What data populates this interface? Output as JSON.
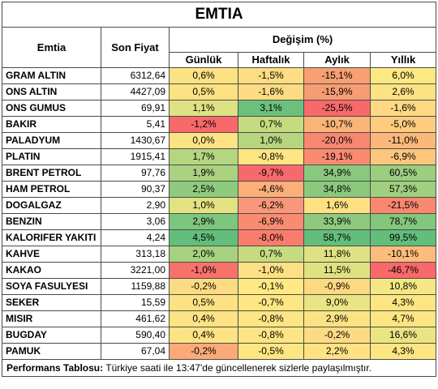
{
  "title": "EMTIA",
  "headers": {
    "emtia": "Emtia",
    "son_fiyat": "Son Fiyat",
    "degisim": "Değişim (%)",
    "gunluk": "Günlük",
    "haftalik": "Haftalık",
    "aylik": "Aylık",
    "yillik": "Yıllık"
  },
  "rows": [
    {
      "name": "GRAM ALTIN",
      "price": "6312,64",
      "vals": [
        {
          "v": "0,6%",
          "c": "#fde283"
        },
        {
          "v": "-1,5%",
          "c": "#fcdd82"
        },
        {
          "v": "-15,1%",
          "c": "#f8a073"
        },
        {
          "v": "6,0%",
          "c": "#fde982"
        }
      ]
    },
    {
      "name": "ONS ALTIN",
      "price": "4427,09",
      "vals": [
        {
          "v": "0,5%",
          "c": "#fde283"
        },
        {
          "v": "-1,6%",
          "c": "#fcdc82"
        },
        {
          "v": "-15,9%",
          "c": "#f89c73"
        },
        {
          "v": "2,6%",
          "c": "#fde283"
        }
      ]
    },
    {
      "name": "ONS GUMUS",
      "price": "69,91",
      "vals": [
        {
          "v": "1,1%",
          "c": "#dfe282"
        },
        {
          "v": "3,1%",
          "c": "#6bc17c"
        },
        {
          "v": "-25,5%",
          "c": "#f8696b"
        },
        {
          "v": "-1,6%",
          "c": "#fed882"
        }
      ]
    },
    {
      "name": "BAKIR",
      "price": "5,41",
      "vals": [
        {
          "v": "-1,2%",
          "c": "#f8696b"
        },
        {
          "v": "0,7%",
          "c": "#c6db80"
        },
        {
          "v": "-10,7%",
          "c": "#f9b578"
        },
        {
          "v": "-5,0%",
          "c": "#fdcc7e"
        }
      ]
    },
    {
      "name": "PALADYUM",
      "price": "1430,67",
      "vals": [
        {
          "v": "0,0%",
          "c": "#fde383"
        },
        {
          "v": "1,0%",
          "c": "#b5d67f"
        },
        {
          "v": "-20,0%",
          "c": "#f8876f"
        },
        {
          "v": "-11,0%",
          "c": "#fcb87a"
        }
      ]
    },
    {
      "name": "PLATIN",
      "price": "1915,41",
      "vals": [
        {
          "v": "1,7%",
          "c": "#b4d67f"
        },
        {
          "v": "-0,8%",
          "c": "#fde583"
        },
        {
          "v": "-19,1%",
          "c": "#f88b70"
        },
        {
          "v": "-6,9%",
          "c": "#fdc67d"
        }
      ]
    },
    {
      "name": "BRENT PETROL",
      "price": "97,76",
      "vals": [
        {
          "v": "1,9%",
          "c": "#abd37f"
        },
        {
          "v": "-9,7%",
          "c": "#f8696b"
        },
        {
          "v": "34,9%",
          "c": "#8ac97d"
        },
        {
          "v": "60,5%",
          "c": "#9bce7f"
        }
      ]
    },
    {
      "name": "HAM PETROL",
      "price": "90,37",
      "vals": [
        {
          "v": "2,5%",
          "c": "#8ecb7e"
        },
        {
          "v": "-4,6%",
          "c": "#fbb07a"
        },
        {
          "v": "34,8%",
          "c": "#8ac97d"
        },
        {
          "v": "57,3%",
          "c": "#a0d07f"
        }
      ]
    },
    {
      "name": "DOGALGAZ",
      "price": "2,90",
      "vals": [
        {
          "v": "1,0%",
          "c": "#e2e282"
        },
        {
          "v": "-6,2%",
          "c": "#f9977a"
        },
        {
          "v": "1,6%",
          "c": "#fee082"
        },
        {
          "v": "-21,5%",
          "c": "#f8886f"
        }
      ]
    },
    {
      "name": "BENZIN",
      "price": "3,06",
      "vals": [
        {
          "v": "2,9%",
          "c": "#7dc67d"
        },
        {
          "v": "-6,9%",
          "c": "#f98c70"
        },
        {
          "v": "33,9%",
          "c": "#8dca7e"
        },
        {
          "v": "78,7%",
          "c": "#83c77d"
        }
      ]
    },
    {
      "name": "KALORIFER YAKITI",
      "price": "4,24",
      "vals": [
        {
          "v": "4,5%",
          "c": "#63be7b"
        },
        {
          "v": "-8,0%",
          "c": "#f97d6e"
        },
        {
          "v": "58,7%",
          "c": "#63be7b"
        },
        {
          "v": "99,5%",
          "c": "#63be7b"
        }
      ]
    },
    {
      "name": "KAHVE",
      "price": "313,18",
      "vals": [
        {
          "v": "2,0%",
          "c": "#a6d27f"
        },
        {
          "v": "0,7%",
          "c": "#c6db80"
        },
        {
          "v": "11,8%",
          "c": "#dfe282"
        },
        {
          "v": "-10,1%",
          "c": "#fcbc7b"
        }
      ]
    },
    {
      "name": "KAKAO",
      "price": "3221,00",
      "vals": [
        {
          "v": "-1,0%",
          "c": "#f8726c"
        },
        {
          "v": "-1,0%",
          "c": "#fde083"
        },
        {
          "v": "11,5%",
          "c": "#e0e282"
        },
        {
          "v": "-46,7%",
          "c": "#f8696b"
        }
      ]
    },
    {
      "name": "SOYA FASULYESI",
      "price": "1159,88",
      "vals": [
        {
          "v": "-0,2%",
          "c": "#fddb83"
        },
        {
          "v": "-0,1%",
          "c": "#fee983"
        },
        {
          "v": "-0,9%",
          "c": "#fed982"
        },
        {
          "v": "10,8%",
          "c": "#f5e884"
        }
      ]
    },
    {
      "name": "SEKER",
      "price": "15,59",
      "vals": [
        {
          "v": "0,5%",
          "c": "#fde283"
        },
        {
          "v": "-0,7%",
          "c": "#fee683"
        },
        {
          "v": "9,0%",
          "c": "#eae583"
        },
        {
          "v": "4,3%",
          "c": "#fde582"
        }
      ]
    },
    {
      "name": "MISIR",
      "price": "461,62",
      "vals": [
        {
          "v": "0,4%",
          "c": "#fde383"
        },
        {
          "v": "-0,8%",
          "c": "#fde583"
        },
        {
          "v": "2,9%",
          "c": "#fbe383"
        },
        {
          "v": "4,7%",
          "c": "#fde682"
        }
      ]
    },
    {
      "name": "BUGDAY",
      "price": "590,40",
      "vals": [
        {
          "v": "0,4%",
          "c": "#fde383"
        },
        {
          "v": "-0,8%",
          "c": "#fde583"
        },
        {
          "v": "-0,2%",
          "c": "#fedb82"
        },
        {
          "v": "16,6%",
          "c": "#eae582"
        }
      ]
    },
    {
      "name": "PAMUK",
      "price": "67,04",
      "vals": [
        {
          "v": "-0,2%",
          "c": "#fba977"
        },
        {
          "v": "-0,5%",
          "c": "#fee783"
        },
        {
          "v": "2,2%",
          "c": "#fee283"
        },
        {
          "v": "4,3%",
          "c": "#fde582"
        }
      ]
    }
  ],
  "footer": {
    "label": "Performans Tablosu:",
    "text": " Türkiye saati ile 13:47'de güncellenerek sizlerle paylaşılmıştır."
  }
}
